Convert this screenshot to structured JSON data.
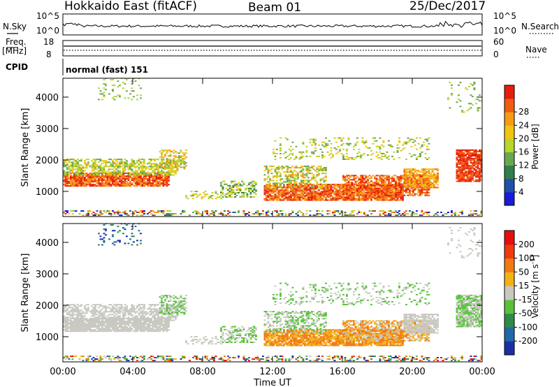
{
  "header": {
    "station": "Hokkaido East (fitACF)",
    "beam": "Beam 01",
    "date": "25/Dec/2017"
  },
  "panels": {
    "nsky_label": "N.Sky",
    "nsearch_label": "N.Search",
    "noise_ticks": [
      "10^5",
      "10^0"
    ],
    "freq_label": "Freq.",
    "freq_unit": "[MHz]",
    "freq_ticks": [
      "18",
      "8"
    ],
    "nave_label": "Nave",
    "nave_ticks": [
      "60",
      "0"
    ],
    "cpid_label": "CPID",
    "cpid_value": "normal (fast) 151"
  },
  "chart_data": [
    {
      "type": "heatmap",
      "name": "power",
      "xlabel": "",
      "ylabel": "Slant Range [km]",
      "x_ticks": [
        "00:00",
        "04:00",
        "08:00",
        "12:00",
        "16:00",
        "20:00",
        "00:00"
      ],
      "xlim_hours": [
        0,
        24
      ],
      "y_ticks": [
        1000,
        2000,
        3000,
        4000
      ],
      "ylim": [
        200,
        4600
      ],
      "colorbar_label": "Power [dB]",
      "colorbar_ticks": [
        4,
        8,
        12,
        16,
        20,
        24,
        28
      ],
      "colorbar_range": [
        0,
        32
      ],
      "colors": [
        "#1a1adb",
        "#1f4fa8",
        "#2f7f4a",
        "#6aa84f",
        "#b5d62b",
        "#f2c40f",
        "#f79a16",
        "#f25c0d",
        "#e61e0f"
      ]
    },
    {
      "type": "heatmap",
      "name": "velocity",
      "xlabel": "Time UT",
      "ylabel": "Slant Range [km]",
      "x_ticks": [
        "00:00",
        "04:00",
        "08:00",
        "12:00",
        "16:00",
        "20:00",
        "00:00"
      ],
      "xlim_hours": [
        0,
        24
      ],
      "y_ticks": [
        1000,
        2000,
        3000,
        4000
      ],
      "ylim": [
        200,
        4600
      ],
      "colorbar_label": "Velocity [m s",
      "colorbar_label_sup": "-1",
      "colorbar_label_end": "]",
      "colorbar_ticks": [
        "200",
        "100",
        "50",
        "15",
        "-15",
        "-50",
        "-100",
        "-200"
      ],
      "colors": [
        "#1a2fa6",
        "#1f6aa8",
        "#2f8a4a",
        "#58c23a",
        "#c8c8c0",
        "#f2b215",
        "#f2780f",
        "#ef3a0f",
        "#e60f0f"
      ]
    }
  ]
}
